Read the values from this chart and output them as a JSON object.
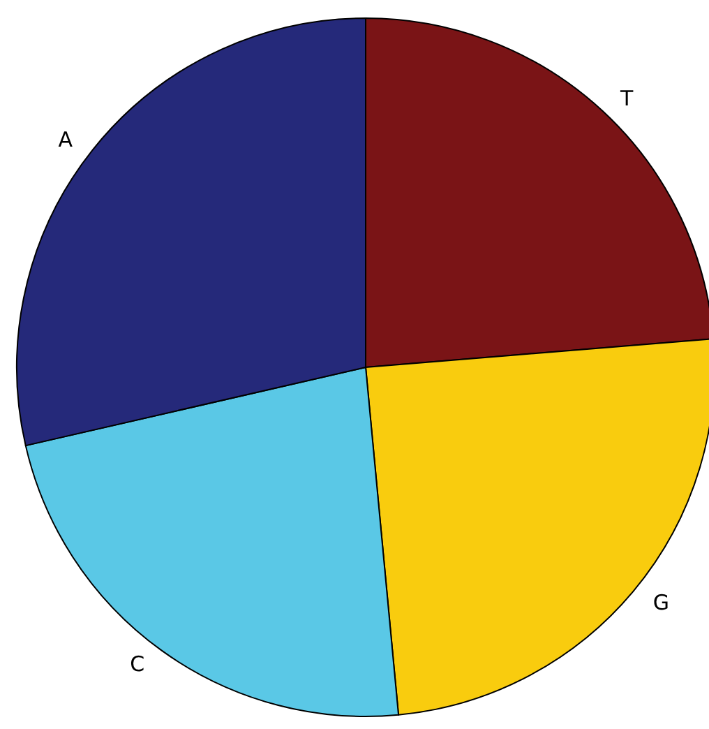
{
  "chart_data": {
    "type": "pie",
    "categories": [
      "T",
      "G",
      "C",
      "A"
    ],
    "values": [
      23.7,
      24.8,
      22.9,
      28.6
    ],
    "colors": [
      "#7a1416",
      "#f9cc0e",
      "#5ac8e6",
      "#25297a"
    ]
  }
}
